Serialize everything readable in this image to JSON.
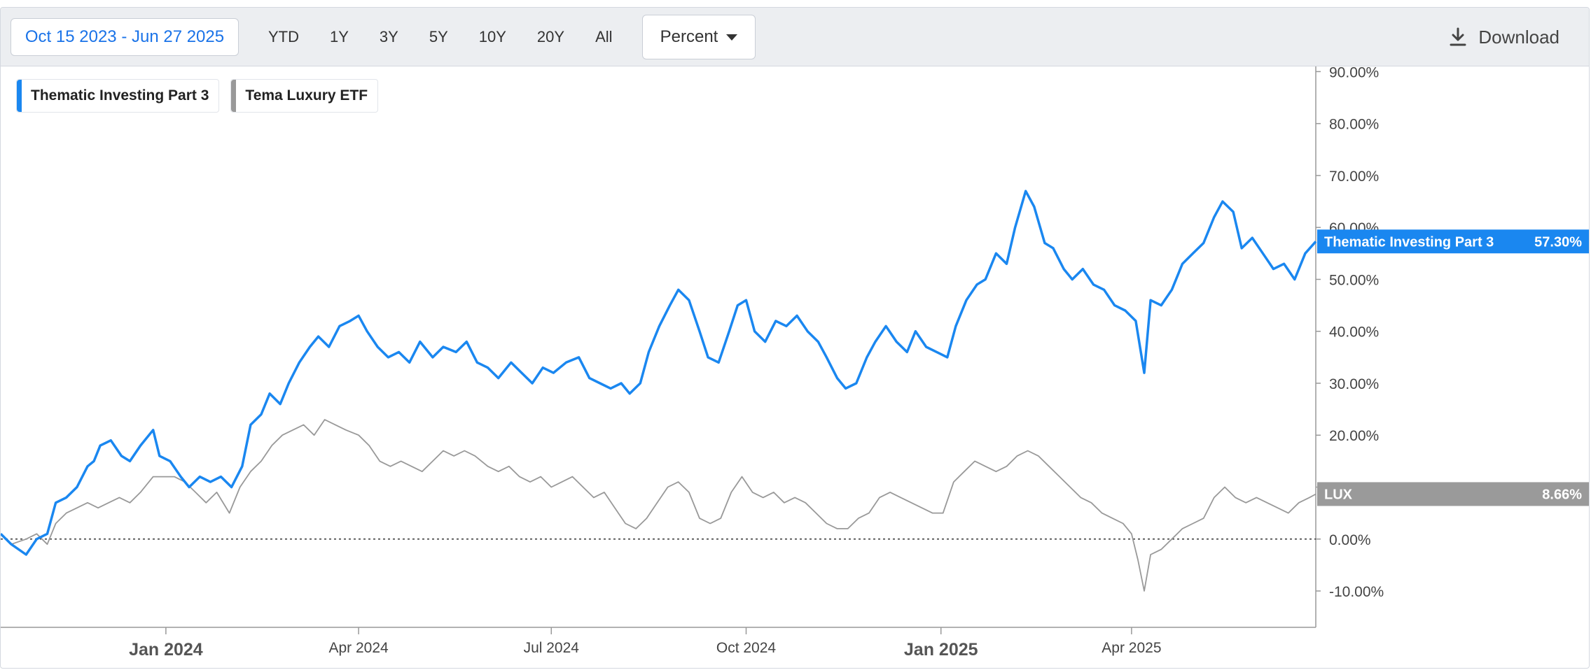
{
  "toolbar": {
    "date_range": "Oct 15 2023 - Jun 27 2025",
    "ranges": [
      "YTD",
      "1Y",
      "3Y",
      "5Y",
      "10Y",
      "20Y",
      "All"
    ],
    "mode": "Percent",
    "download_label": "Download"
  },
  "legend": [
    {
      "label": "Thematic Investing Part 3",
      "color": "#1a87f0"
    },
    {
      "label": "Tema Luxury ETF",
      "color": "#999999"
    }
  ],
  "end_labels": [
    {
      "name": "Thematic Investing Part 3",
      "value": "57.30%",
      "color": "#1a87f0"
    },
    {
      "name": "LUX",
      "value": "8.66%",
      "color": "#9a9a9a"
    }
  ],
  "chart_data": {
    "type": "line",
    "x_range": [
      "2023-10-15",
      "2025-06-27"
    ],
    "ylim": [
      -17,
      91
    ],
    "y_ticks": [
      90,
      80,
      70,
      60,
      50,
      40,
      30,
      20,
      10,
      0,
      -10
    ],
    "y_tick_labels": [
      "90.00%",
      "80.00%",
      "70.00%",
      "60.00%",
      "50.00%",
      "40.00%",
      "30.00%",
      "20.00%",
      "10.00%",
      "0.00%",
      "-10.00%"
    ],
    "x_ticks": [
      {
        "date": "2024-01-01",
        "label": "Jan 2024",
        "major": true
      },
      {
        "date": "2024-04-01",
        "label": "Apr 2024",
        "major": false
      },
      {
        "date": "2024-07-01",
        "label": "Jul 2024",
        "major": false
      },
      {
        "date": "2024-10-01",
        "label": "Oct 2024",
        "major": false
      },
      {
        "date": "2025-01-01",
        "label": "Jan 2025",
        "major": true
      },
      {
        "date": "2025-04-01",
        "label": "Apr 2025",
        "major": false
      }
    ],
    "zero_line": true,
    "series": [
      {
        "name": "Thematic Investing Part 3",
        "color": "#1a87f0",
        "points": [
          [
            "2023-10-15",
            1
          ],
          [
            "2023-10-20",
            -1
          ],
          [
            "2023-10-27",
            -3
          ],
          [
            "2023-11-01",
            0
          ],
          [
            "2023-11-06",
            1
          ],
          [
            "2023-11-10",
            7
          ],
          [
            "2023-11-15",
            8
          ],
          [
            "2023-11-20",
            10
          ],
          [
            "2023-11-25",
            14
          ],
          [
            "2023-11-28",
            15
          ],
          [
            "2023-12-01",
            18
          ],
          [
            "2023-12-06",
            19
          ],
          [
            "2023-12-11",
            16
          ],
          [
            "2023-12-15",
            15
          ],
          [
            "2023-12-20",
            18
          ],
          [
            "2023-12-26",
            21
          ],
          [
            "2023-12-29",
            16
          ],
          [
            "2024-01-03",
            15
          ],
          [
            "2024-01-08",
            12
          ],
          [
            "2024-01-12",
            10
          ],
          [
            "2024-01-17",
            12
          ],
          [
            "2024-01-22",
            11
          ],
          [
            "2024-01-27",
            12
          ],
          [
            "2024-02-01",
            10
          ],
          [
            "2024-02-06",
            14
          ],
          [
            "2024-02-10",
            22
          ],
          [
            "2024-02-15",
            24
          ],
          [
            "2024-02-19",
            28
          ],
          [
            "2024-02-24",
            26
          ],
          [
            "2024-02-28",
            30
          ],
          [
            "2024-03-04",
            34
          ],
          [
            "2024-03-09",
            37
          ],
          [
            "2024-03-13",
            39
          ],
          [
            "2024-03-18",
            37
          ],
          [
            "2024-03-23",
            41
          ],
          [
            "2024-03-28",
            42
          ],
          [
            "2024-04-01",
            43
          ],
          [
            "2024-04-05",
            40
          ],
          [
            "2024-04-10",
            37
          ],
          [
            "2024-04-15",
            35
          ],
          [
            "2024-04-20",
            36
          ],
          [
            "2024-04-25",
            34
          ],
          [
            "2024-04-30",
            38
          ],
          [
            "2024-05-06",
            35
          ],
          [
            "2024-05-11",
            37
          ],
          [
            "2024-05-17",
            36
          ],
          [
            "2024-05-22",
            38
          ],
          [
            "2024-05-27",
            34
          ],
          [
            "2024-06-01",
            33
          ],
          [
            "2024-06-06",
            31
          ],
          [
            "2024-06-12",
            34
          ],
          [
            "2024-06-17",
            32
          ],
          [
            "2024-06-22",
            30
          ],
          [
            "2024-06-27",
            33
          ],
          [
            "2024-07-02",
            32
          ],
          [
            "2024-07-08",
            34
          ],
          [
            "2024-07-14",
            35
          ],
          [
            "2024-07-19",
            31
          ],
          [
            "2024-07-24",
            30
          ],
          [
            "2024-07-29",
            29
          ],
          [
            "2024-08-03",
            30
          ],
          [
            "2024-08-07",
            28
          ],
          [
            "2024-08-12",
            30
          ],
          [
            "2024-08-16",
            36
          ],
          [
            "2024-08-21",
            41
          ],
          [
            "2024-08-26",
            45
          ],
          [
            "2024-08-30",
            48
          ],
          [
            "2024-09-04",
            46
          ],
          [
            "2024-09-09",
            40
          ],
          [
            "2024-09-13",
            35
          ],
          [
            "2024-09-18",
            34
          ],
          [
            "2024-09-23",
            40
          ],
          [
            "2024-09-27",
            45
          ],
          [
            "2024-10-01",
            46
          ],
          [
            "2024-10-05",
            40
          ],
          [
            "2024-10-10",
            38
          ],
          [
            "2024-10-15",
            42
          ],
          [
            "2024-10-20",
            41
          ],
          [
            "2024-10-25",
            43
          ],
          [
            "2024-10-30",
            40
          ],
          [
            "2024-11-04",
            38
          ],
          [
            "2024-11-08",
            35
          ],
          [
            "2024-11-13",
            31
          ],
          [
            "2024-11-17",
            29
          ],
          [
            "2024-11-22",
            30
          ],
          [
            "2024-11-27",
            35
          ],
          [
            "2024-12-01",
            38
          ],
          [
            "2024-12-06",
            41
          ],
          [
            "2024-12-11",
            38
          ],
          [
            "2024-12-16",
            36
          ],
          [
            "2024-12-20",
            40
          ],
          [
            "2024-12-25",
            37
          ],
          [
            "2024-12-30",
            36
          ],
          [
            "2025-01-04",
            35
          ],
          [
            "2025-01-08",
            41
          ],
          [
            "2025-01-13",
            46
          ],
          [
            "2025-01-18",
            49
          ],
          [
            "2025-01-22",
            50
          ],
          [
            "2025-01-27",
            55
          ],
          [
            "2025-02-01",
            53
          ],
          [
            "2025-02-05",
            60
          ],
          [
            "2025-02-10",
            67
          ],
          [
            "2025-02-14",
            64
          ],
          [
            "2025-02-19",
            57
          ],
          [
            "2025-02-23",
            56
          ],
          [
            "2025-02-28",
            52
          ],
          [
            "2025-03-04",
            50
          ],
          [
            "2025-03-09",
            52
          ],
          [
            "2025-03-14",
            49
          ],
          [
            "2025-03-19",
            48
          ],
          [
            "2025-03-24",
            45
          ],
          [
            "2025-03-29",
            44
          ],
          [
            "2025-04-03",
            42
          ],
          [
            "2025-04-07",
            32
          ],
          [
            "2025-04-10",
            46
          ],
          [
            "2025-04-15",
            45
          ],
          [
            "2025-04-20",
            48
          ],
          [
            "2025-04-25",
            53
          ],
          [
            "2025-04-30",
            55
          ],
          [
            "2025-05-05",
            57
          ],
          [
            "2025-05-10",
            62
          ],
          [
            "2025-05-14",
            65
          ],
          [
            "2025-05-19",
            63
          ],
          [
            "2025-05-23",
            56
          ],
          [
            "2025-05-28",
            58
          ],
          [
            "2025-06-02",
            55
          ],
          [
            "2025-06-07",
            52
          ],
          [
            "2025-06-12",
            53
          ],
          [
            "2025-06-17",
            50
          ],
          [
            "2025-06-22",
            55
          ],
          [
            "2025-06-27",
            57.3
          ]
        ]
      },
      {
        "name": "LUX",
        "color": "#999999",
        "points": [
          [
            "2023-10-15",
            1
          ],
          [
            "2023-10-20",
            -1
          ],
          [
            "2023-10-27",
            0
          ],
          [
            "2023-11-01",
            1
          ],
          [
            "2023-11-06",
            -1
          ],
          [
            "2023-11-10",
            3
          ],
          [
            "2023-11-15",
            5
          ],
          [
            "2023-11-20",
            6
          ],
          [
            "2023-11-25",
            7
          ],
          [
            "2023-11-30",
            6
          ],
          [
            "2023-12-05",
            7
          ],
          [
            "2023-12-10",
            8
          ],
          [
            "2023-12-15",
            7
          ],
          [
            "2023-12-20",
            9
          ],
          [
            "2023-12-26",
            12
          ],
          [
            "2023-12-31",
            12
          ],
          [
            "2024-01-05",
            12
          ],
          [
            "2024-01-10",
            11
          ],
          [
            "2024-01-15",
            9
          ],
          [
            "2024-01-20",
            7
          ],
          [
            "2024-01-25",
            9
          ],
          [
            "2024-01-31",
            5
          ],
          [
            "2024-02-05",
            10
          ],
          [
            "2024-02-10",
            13
          ],
          [
            "2024-02-15",
            15
          ],
          [
            "2024-02-20",
            18
          ],
          [
            "2024-02-25",
            20
          ],
          [
            "2024-03-01",
            21
          ],
          [
            "2024-03-06",
            22
          ],
          [
            "2024-03-11",
            20
          ],
          [
            "2024-03-16",
            23
          ],
          [
            "2024-03-21",
            22
          ],
          [
            "2024-03-26",
            21
          ],
          [
            "2024-04-01",
            20
          ],
          [
            "2024-04-06",
            18
          ],
          [
            "2024-04-11",
            15
          ],
          [
            "2024-04-16",
            14
          ],
          [
            "2024-04-21",
            15
          ],
          [
            "2024-04-26",
            14
          ],
          [
            "2024-05-01",
            13
          ],
          [
            "2024-05-06",
            15
          ],
          [
            "2024-05-11",
            17
          ],
          [
            "2024-05-16",
            16
          ],
          [
            "2024-05-21",
            17
          ],
          [
            "2024-05-26",
            16
          ],
          [
            "2024-06-01",
            14
          ],
          [
            "2024-06-06",
            13
          ],
          [
            "2024-06-11",
            14
          ],
          [
            "2024-06-16",
            12
          ],
          [
            "2024-06-21",
            11
          ],
          [
            "2024-06-26",
            12
          ],
          [
            "2024-07-01",
            10
          ],
          [
            "2024-07-06",
            11
          ],
          [
            "2024-07-11",
            12
          ],
          [
            "2024-07-16",
            10
          ],
          [
            "2024-07-21",
            8
          ],
          [
            "2024-07-26",
            9
          ],
          [
            "2024-07-31",
            6
          ],
          [
            "2024-08-05",
            3
          ],
          [
            "2024-08-10",
            2
          ],
          [
            "2024-08-15",
            4
          ],
          [
            "2024-08-20",
            7
          ],
          [
            "2024-08-25",
            10
          ],
          [
            "2024-08-30",
            11
          ],
          [
            "2024-09-04",
            9
          ],
          [
            "2024-09-09",
            4
          ],
          [
            "2024-09-14",
            3
          ],
          [
            "2024-09-19",
            4
          ],
          [
            "2024-09-24",
            9
          ],
          [
            "2024-09-29",
            12
          ],
          [
            "2024-10-04",
            9
          ],
          [
            "2024-10-09",
            8
          ],
          [
            "2024-10-14",
            9
          ],
          [
            "2024-10-19",
            7
          ],
          [
            "2024-10-24",
            8
          ],
          [
            "2024-10-29",
            7
          ],
          [
            "2024-11-03",
            5
          ],
          [
            "2024-11-08",
            3
          ],
          [
            "2024-11-13",
            2
          ],
          [
            "2024-11-18",
            2
          ],
          [
            "2024-11-23",
            4
          ],
          [
            "2024-11-28",
            5
          ],
          [
            "2024-12-03",
            8
          ],
          [
            "2024-12-08",
            9
          ],
          [
            "2024-12-13",
            8
          ],
          [
            "2024-12-18",
            7
          ],
          [
            "2024-12-23",
            6
          ],
          [
            "2024-12-28",
            5
          ],
          [
            "2025-01-02",
            5
          ],
          [
            "2025-01-07",
            11
          ],
          [
            "2025-01-12",
            13
          ],
          [
            "2025-01-17",
            15
          ],
          [
            "2025-01-22",
            14
          ],
          [
            "2025-01-27",
            13
          ],
          [
            "2025-02-01",
            14
          ],
          [
            "2025-02-06",
            16
          ],
          [
            "2025-02-11",
            17
          ],
          [
            "2025-02-16",
            16
          ],
          [
            "2025-02-21",
            14
          ],
          [
            "2025-02-26",
            12
          ],
          [
            "2025-03-03",
            10
          ],
          [
            "2025-03-08",
            8
          ],
          [
            "2025-03-13",
            7
          ],
          [
            "2025-03-18",
            5
          ],
          [
            "2025-03-23",
            4
          ],
          [
            "2025-03-28",
            3
          ],
          [
            "2025-04-01",
            1
          ],
          [
            "2025-04-04",
            -4
          ],
          [
            "2025-04-07",
            -10
          ],
          [
            "2025-04-10",
            -3
          ],
          [
            "2025-04-15",
            -2
          ],
          [
            "2025-04-20",
            0
          ],
          [
            "2025-04-25",
            2
          ],
          [
            "2025-04-30",
            3
          ],
          [
            "2025-05-05",
            4
          ],
          [
            "2025-05-10",
            8
          ],
          [
            "2025-05-15",
            10
          ],
          [
            "2025-05-20",
            8
          ],
          [
            "2025-05-25",
            7
          ],
          [
            "2025-05-30",
            8
          ],
          [
            "2025-06-04",
            7
          ],
          [
            "2025-06-09",
            6
          ],
          [
            "2025-06-14",
            5
          ],
          [
            "2025-06-19",
            7
          ],
          [
            "2025-06-24",
            8
          ],
          [
            "2025-06-27",
            8.66
          ]
        ]
      }
    ]
  }
}
